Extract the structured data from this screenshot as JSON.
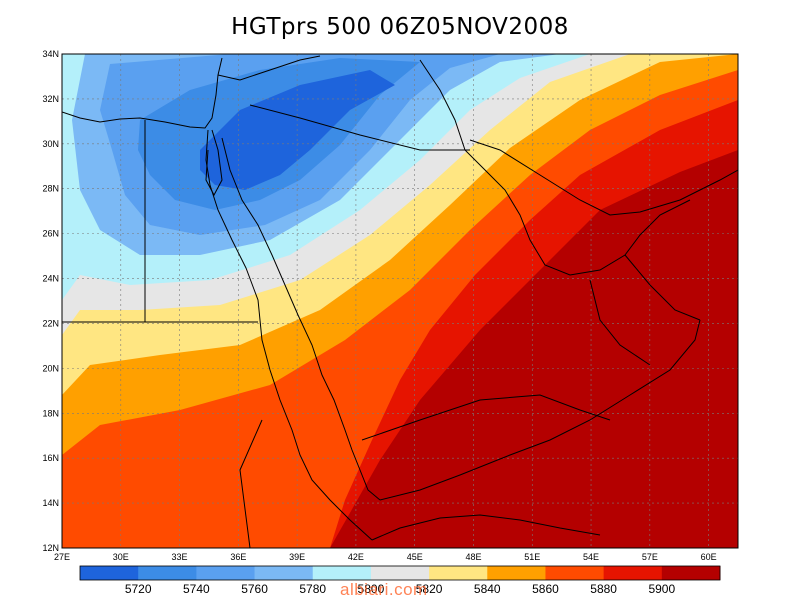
{
  "title": "HGTprs 500 06Z05NOV2008",
  "watermark": "albiari.com",
  "map": {
    "lon_range": [
      27,
      61.5
    ],
    "lat_range": [
      12,
      34
    ],
    "lon_ticks": [
      "27E",
      "30E",
      "33E",
      "36E",
      "39E",
      "42E",
      "45E",
      "48E",
      "51E",
      "54E",
      "57E",
      "60E"
    ],
    "lat_ticks": [
      "12N",
      "14N",
      "16N",
      "18N",
      "20N",
      "22N",
      "24N",
      "26N",
      "28N",
      "30N",
      "32N",
      "34N"
    ]
  },
  "colorbar": {
    "colors": [
      "#1e64dc",
      "#3c8ce6",
      "#5aa0f0",
      "#7bb9f5",
      "#b4f0fa",
      "#e6e6e6",
      "#ffe682",
      "#ffa000",
      "#ff4b00",
      "#e61400",
      "#b40000"
    ],
    "labels": [
      "5720",
      "5740",
      "5760",
      "5780",
      "5800",
      "5820",
      "5840",
      "5860",
      "5880",
      "5900"
    ]
  }
}
